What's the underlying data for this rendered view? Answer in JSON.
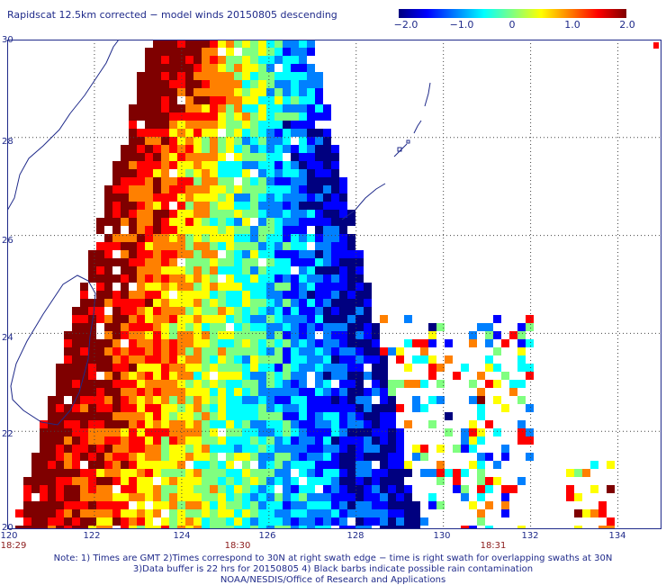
{
  "title": "Rapidscat 12.5km corrected − model winds 20150805 descending",
  "colorbar": {
    "min": -2.0,
    "max": 2.0,
    "tick_labels": [
      "−2.0",
      "−1.0",
      "0",
      "1.0",
      "2.0"
    ],
    "colors": [
      "#00007f",
      "#0000ff",
      "#0080ff",
      "#00ffff",
      "#80ff80",
      "#ffff00",
      "#ff8000",
      "#ff0000",
      "#7f0000"
    ]
  },
  "map": {
    "lon_range": [
      120,
      135
    ],
    "lat_range": [
      20,
      30
    ],
    "lat_labels": [
      "30",
      "28",
      "26",
      "24",
      "22",
      "20"
    ],
    "lon_labels": [
      "120",
      "122",
      "124",
      "126",
      "128",
      "130",
      "132",
      "134"
    ],
    "time_labels": [
      "18:29",
      "18:30",
      "18:31"
    ],
    "grid_style": "dotted",
    "coastline_color": "#1f2a8a"
  },
  "notes": [
    "Note: 1) Times are GMT 2)Times correspond to 30N at right swath edge − time is right swath for overlapping swaths at 30N",
    "3)Data buffer is 22 hrs for 20150805 4) Black barbs indicate possible rain contamination",
    "NOAA/NESDIS/Office of Research and Applications"
  ]
}
